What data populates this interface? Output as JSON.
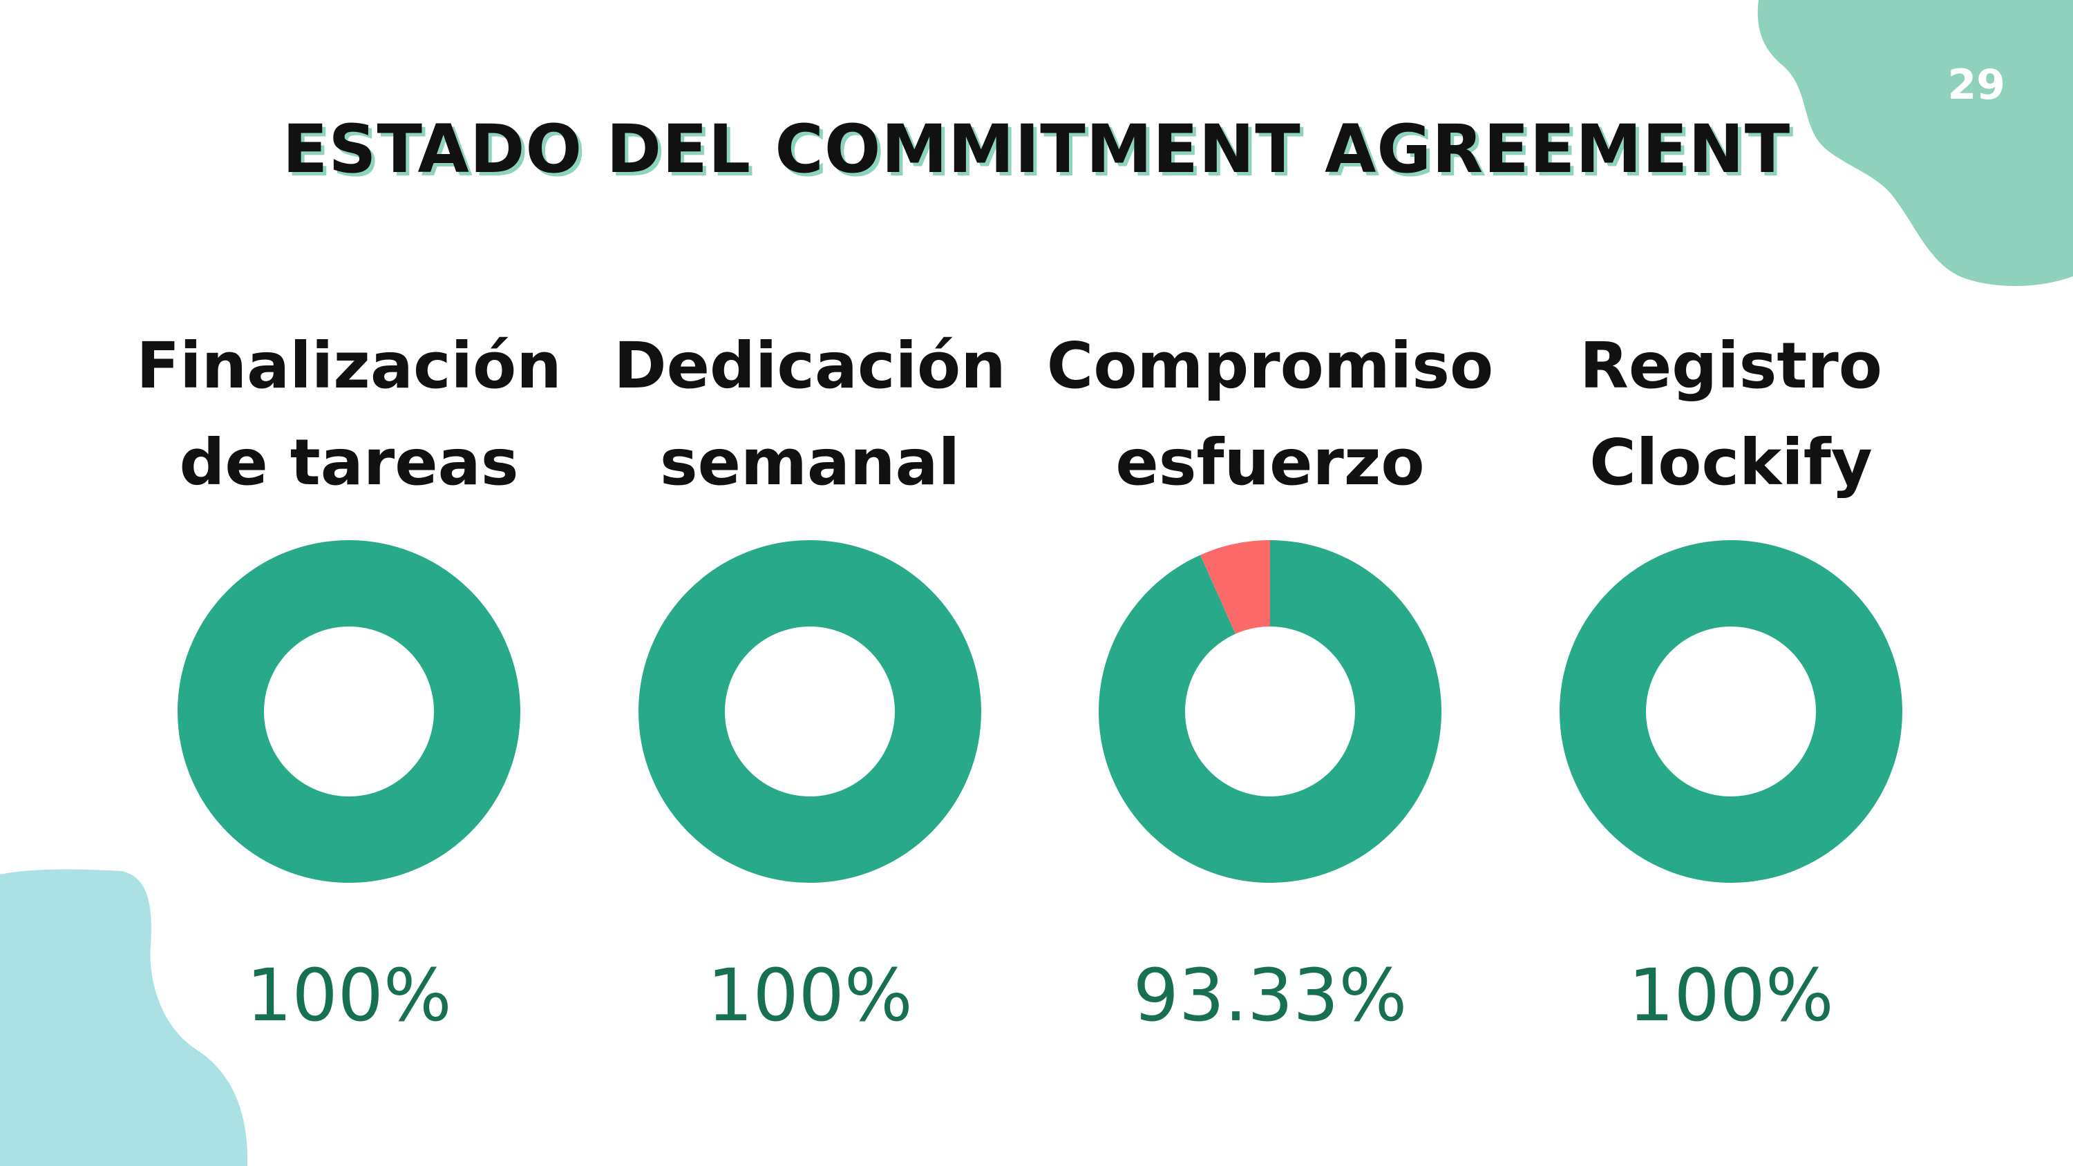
{
  "page_number": "29",
  "title": "ESTADO DEL COMMITMENT AGREEMENT",
  "colors": {
    "primary": "#28aa8a",
    "remainder": "#fb6a68",
    "value_text": "#17704f",
    "title_shadow": "#8ed3c0",
    "blob_top_right": "#8fd1bd",
    "blob_bottom_left": "#abe0e4"
  },
  "chart_data": [
    {
      "type": "pie",
      "variant": "donut",
      "label_lines": [
        "Finalización",
        "de tareas"
      ],
      "value": 100,
      "value_label": "100%"
    },
    {
      "type": "pie",
      "variant": "donut",
      "label_lines": [
        "Dedicación",
        "semanal"
      ],
      "value": 100,
      "value_label": "100%"
    },
    {
      "type": "pie",
      "variant": "donut",
      "label_lines": [
        "Compromiso",
        "esfuerzo"
      ],
      "value": 93.33,
      "value_label": "93.33%"
    },
    {
      "type": "pie",
      "variant": "donut",
      "label_lines": [
        "Registro",
        "Clockify"
      ],
      "value": 100,
      "value_label": "100%"
    }
  ]
}
